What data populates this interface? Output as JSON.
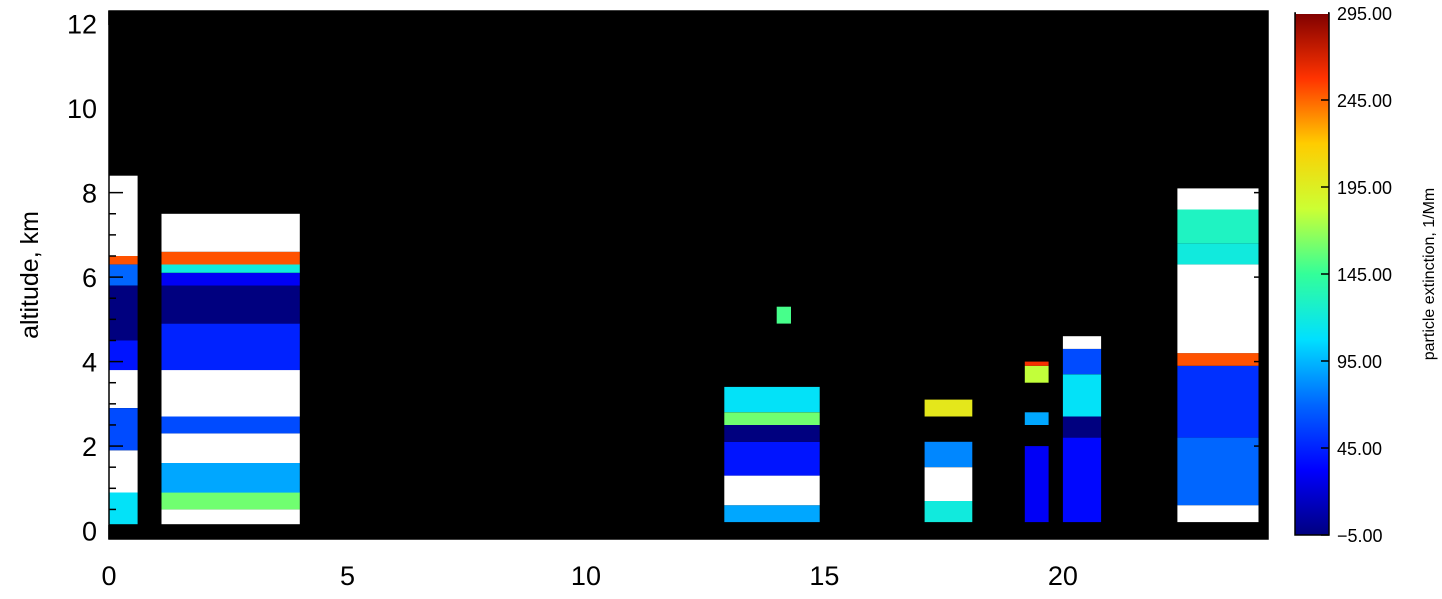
{
  "chart_data": {
    "type": "heatmap",
    "ylabel": "altitude,  km",
    "xlim": [
      0,
      24.3
    ],
    "ylim": [
      -0.2,
      12.3
    ],
    "x_ticks": [
      0,
      5,
      10,
      15,
      20
    ],
    "x_tick_labels": [
      "0",
      "5",
      "10",
      "15",
      "20"
    ],
    "y_ticks": [
      0,
      2,
      4,
      6,
      8,
      10,
      12
    ],
    "y_tick_labels": [
      "0",
      "2",
      "4",
      "6",
      "8",
      "10",
      "12"
    ],
    "background": "#000000",
    "colorbar": {
      "label": "particle extinction, 1/Mm",
      "range": [
        -5,
        295
      ],
      "ticks": [
        -5,
        45,
        95,
        145,
        195,
        245,
        295
      ],
      "tick_labels": [
        "−5.00",
        "45.00",
        "95.00",
        "145.00",
        "195.00",
        "245.00",
        "295.00"
      ],
      "saturation_color": "#ffffff"
    },
    "colormap": [
      {
        "value": -5,
        "color": "#00007f"
      },
      {
        "value": 32.5,
        "color": "#0000ff"
      },
      {
        "value": 70,
        "color": "#0066ff"
      },
      {
        "value": 107.5,
        "color": "#00e0ff"
      },
      {
        "value": 145,
        "color": "#33ff99"
      },
      {
        "value": 182.5,
        "color": "#ccff33"
      },
      {
        "value": 220,
        "color": "#ffcc00"
      },
      {
        "value": 257.5,
        "color": "#ff3300"
      },
      {
        "value": 295,
        "color": "#800000"
      }
    ],
    "profile_blocks": [
      {
        "x0": 0.0,
        "x1": 0.6,
        "layers": [
          {
            "y0": 0.15,
            "y1": 0.9,
            "value": 110
          },
          {
            "y0": 0.9,
            "y1": 1.9,
            "value": 300
          },
          {
            "y0": 1.9,
            "y1": 2.9,
            "value": 60
          },
          {
            "y0": 2.9,
            "y1": 3.8,
            "value": 300
          },
          {
            "y0": 3.8,
            "y1": 4.5,
            "value": 40
          },
          {
            "y0": 4.5,
            "y1": 5.8,
            "value": -5
          },
          {
            "y0": 5.8,
            "y1": 6.3,
            "value": 70
          },
          {
            "y0": 6.3,
            "y1": 6.5,
            "value": 250
          },
          {
            "y0": 6.5,
            "y1": 8.4,
            "value": 300
          }
        ]
      },
      {
        "x0": 1.1,
        "x1": 4.0,
        "layers": [
          {
            "y0": 0.15,
            "y1": 0.5,
            "value": 300
          },
          {
            "y0": 0.5,
            "y1": 0.9,
            "value": 160
          },
          {
            "y0": 0.9,
            "y1": 1.6,
            "value": 90
          },
          {
            "y0": 1.6,
            "y1": 2.3,
            "value": 300
          },
          {
            "y0": 2.3,
            "y1": 2.7,
            "value": 60
          },
          {
            "y0": 2.7,
            "y1": 3.8,
            "value": 300
          },
          {
            "y0": 3.8,
            "y1": 4.9,
            "value": 45
          },
          {
            "y0": 4.9,
            "y1": 5.8,
            "value": -5
          },
          {
            "y0": 5.8,
            "y1": 6.1,
            "value": 30
          },
          {
            "y0": 6.1,
            "y1": 6.3,
            "value": 120
          },
          {
            "y0": 6.3,
            "y1": 6.6,
            "value": 250
          },
          {
            "y0": 6.6,
            "y1": 7.5,
            "value": 300
          }
        ]
      },
      {
        "x0": 12.9,
        "x1": 14.9,
        "layers": [
          {
            "y0": 0.2,
            "y1": 0.6,
            "value": 90
          },
          {
            "y0": 0.6,
            "y1": 1.3,
            "value": 300
          },
          {
            "y0": 1.3,
            "y1": 2.1,
            "value": 40
          },
          {
            "y0": 2.1,
            "y1": 2.5,
            "value": -5
          },
          {
            "y0": 2.5,
            "y1": 2.8,
            "value": 160
          },
          {
            "y0": 2.8,
            "y1": 3.4,
            "value": 110
          }
        ]
      },
      {
        "x0": 17.1,
        "x1": 18.1,
        "layers": [
          {
            "y0": 0.2,
            "y1": 0.7,
            "value": 120
          },
          {
            "y0": 0.7,
            "y1": 1.5,
            "value": 300
          },
          {
            "y0": 1.5,
            "y1": 2.1,
            "value": 80
          },
          {
            "y0": 2.7,
            "y1": 3.1,
            "value": 200
          }
        ]
      },
      {
        "x0": 19.2,
        "x1": 19.7,
        "layers": [
          {
            "y0": 0.2,
            "y1": 2.0,
            "value": 30
          },
          {
            "y0": 2.5,
            "y1": 2.8,
            "value": 90
          },
          {
            "y0": 3.5,
            "y1": 3.9,
            "value": 180
          },
          {
            "y0": 3.9,
            "y1": 4.0,
            "value": 260
          }
        ]
      },
      {
        "x0": 20.0,
        "x1": 20.8,
        "layers": [
          {
            "y0": 0.2,
            "y1": 2.2,
            "value": 35
          },
          {
            "y0": 2.2,
            "y1": 2.7,
            "value": -5
          },
          {
            "y0": 2.7,
            "y1": 3.7,
            "value": 110
          },
          {
            "y0": 3.7,
            "y1": 4.3,
            "value": 60
          },
          {
            "y0": 4.3,
            "y1": 4.6,
            "value": 300
          }
        ]
      },
      {
        "x0": 22.4,
        "x1": 24.1,
        "layers": [
          {
            "y0": 0.2,
            "y1": 0.6,
            "value": 300
          },
          {
            "y0": 0.6,
            "y1": 2.2,
            "value": 70
          },
          {
            "y0": 2.2,
            "y1": 3.9,
            "value": 50
          },
          {
            "y0": 3.9,
            "y1": 4.2,
            "value": 250
          },
          {
            "y0": 4.2,
            "y1": 6.3,
            "value": 300
          },
          {
            "y0": 6.3,
            "y1": 6.8,
            "value": 120
          },
          {
            "y0": 6.8,
            "y1": 7.6,
            "value": 130
          },
          {
            "y0": 7.6,
            "y1": 8.1,
            "value": 300
          }
        ]
      },
      {
        "x0": 14.0,
        "x1": 14.3,
        "layers": [
          {
            "y0": 4.9,
            "y1": 5.3,
            "value": 150
          }
        ]
      }
    ]
  }
}
